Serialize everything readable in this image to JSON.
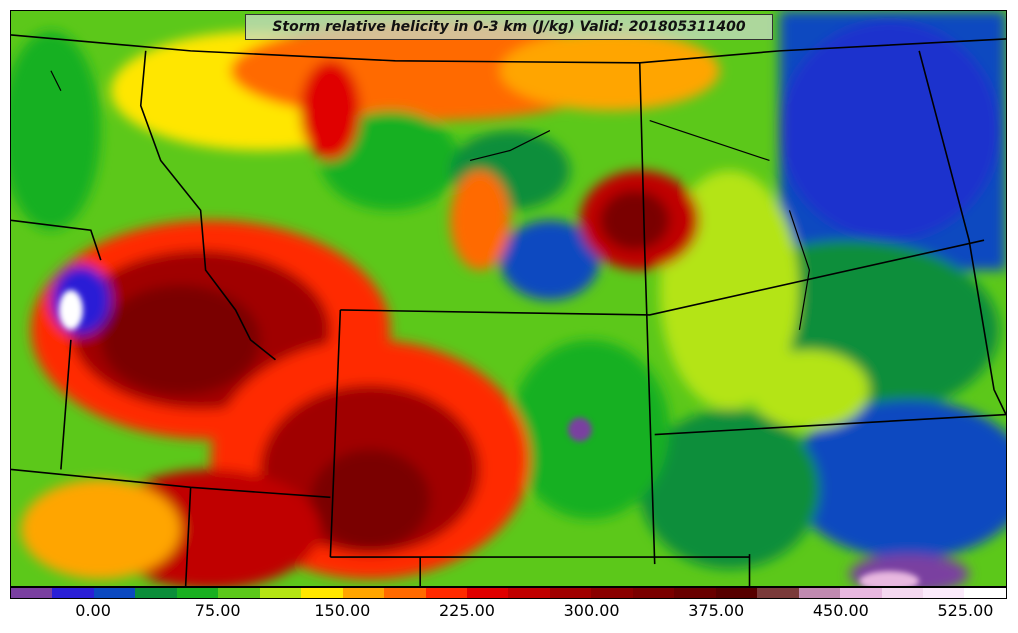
{
  "map": {
    "title": "Storm relative helicity in 0-3 km (J/kg) Valid: 201805311400",
    "colorbar": {
      "colors": [
        "#7a3fa0",
        "#2a1fd6",
        "#0b49c0",
        "#0b8e3a",
        "#19b020",
        "#5cc81a",
        "#b4e414",
        "#ffe600",
        "#ffa500",
        "#ff6a00",
        "#ff2a00",
        "#e00000",
        "#c00000",
        "#a00000",
        "#8a0000",
        "#7a0000",
        "#680000",
        "#560000",
        "#7a3a3a",
        "#c08ab0",
        "#e8b8e0",
        "#f4d8f0",
        "#fbeafb",
        "#ffffff"
      ],
      "tick_labels": [
        "0.00",
        "75.00",
        "150.00",
        "225.00",
        "300.00",
        "375.00",
        "450.00",
        "525.00"
      ],
      "tick_values": [
        0,
        75,
        150,
        225,
        300,
        375,
        450,
        525
      ],
      "vmin": -50,
      "vmax": 550
    }
  }
}
